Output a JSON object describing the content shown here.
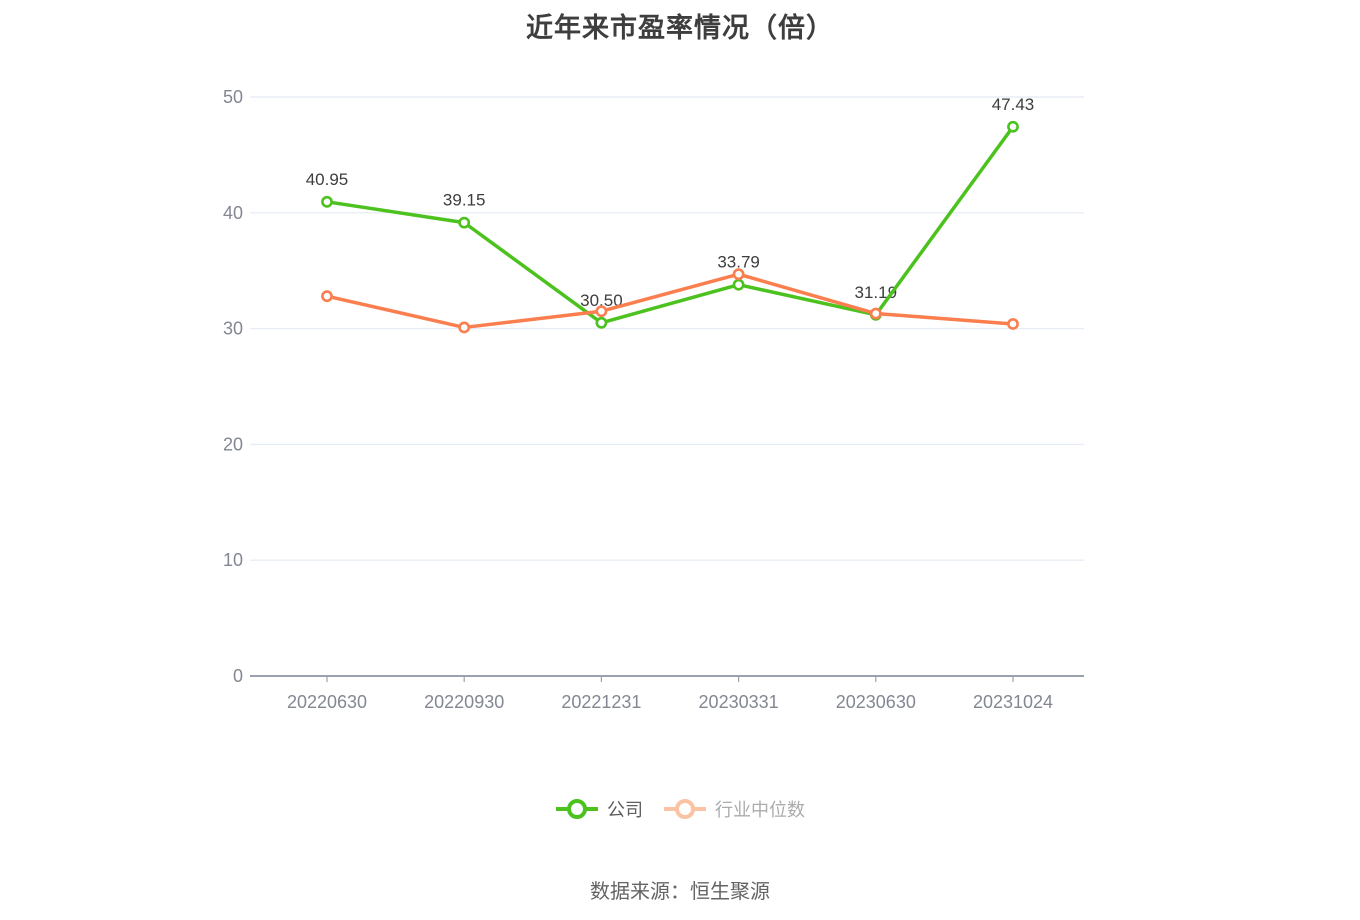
{
  "source_note": "数据来源：恒生聚源",
  "colors": {
    "company": "#4cc21e",
    "industry": "#fa7e4e",
    "industry_legend_faded": "#fbc2a4",
    "grid_line": "#e8edf5",
    "axis_line": "#9ba1ac",
    "tick_label": "#828792",
    "data_label": "#3d3d3d",
    "title_text": "#3e3e3e",
    "legend_company_text": "#5e5e5e",
    "legend_industry_text": "#acacac",
    "source_text": "#646464",
    "marker_fill": "#ffffff"
  },
  "chart_data": {
    "type": "line",
    "title": "近年来市盈率情况（倍）",
    "categories": [
      "20220630",
      "20220930",
      "20221231",
      "20230331",
      "20230630",
      "20231024"
    ],
    "series": [
      {
        "name": "公司",
        "values": [
          40.95,
          39.15,
          30.5,
          33.79,
          31.19,
          47.43
        ],
        "point_labels": [
          "40.95",
          "39.15",
          "30.50",
          "33.79",
          "31.19",
          "47.43"
        ],
        "color": "#4cc21e"
      },
      {
        "name": "行业中位数",
        "values": [
          32.8,
          30.1,
          31.5,
          34.7,
          31.3,
          30.4
        ],
        "point_labels": null,
        "color": "#fa7e4e"
      }
    ],
    "xlabel": "",
    "ylabel": "",
    "ylim": [
      0,
      50
    ],
    "yticks": [
      0,
      10,
      20,
      30,
      40,
      50
    ],
    "grid": "horizontal",
    "legend_position": "bottom",
    "marker": "hollow-circle"
  }
}
